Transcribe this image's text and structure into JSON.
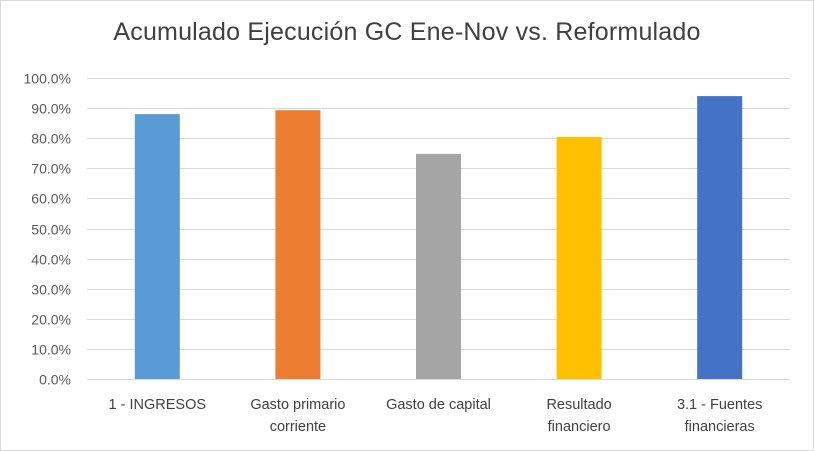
{
  "chart_data": {
    "type": "bar",
    "title": "Acumulado Ejecución GC Ene-Nov vs. Reformulado",
    "xlabel": "",
    "ylabel": "",
    "ylim": [
      0,
      100
    ],
    "yticks": [
      "0.0%",
      "10.0%",
      "20.0%",
      "30.0%",
      "40.0%",
      "50.0%",
      "60.0%",
      "70.0%",
      "80.0%",
      "90.0%",
      "100.0%"
    ],
    "grid": true,
    "legend": "none",
    "categories": [
      [
        "1 - INGRESOS"
      ],
      [
        "Gasto primario",
        "corriente"
      ],
      [
        "Gasto de capital"
      ],
      [
        "Resultado",
        "financiero"
      ],
      [
        "3.1 - Fuentes",
        "financieras"
      ]
    ],
    "values": [
      88.0,
      89.3,
      74.8,
      80.4,
      94.0
    ],
    "colors": [
      "#5b9bd5",
      "#ed7d31",
      "#a5a5a5",
      "#ffc000",
      "#4472c4"
    ]
  }
}
